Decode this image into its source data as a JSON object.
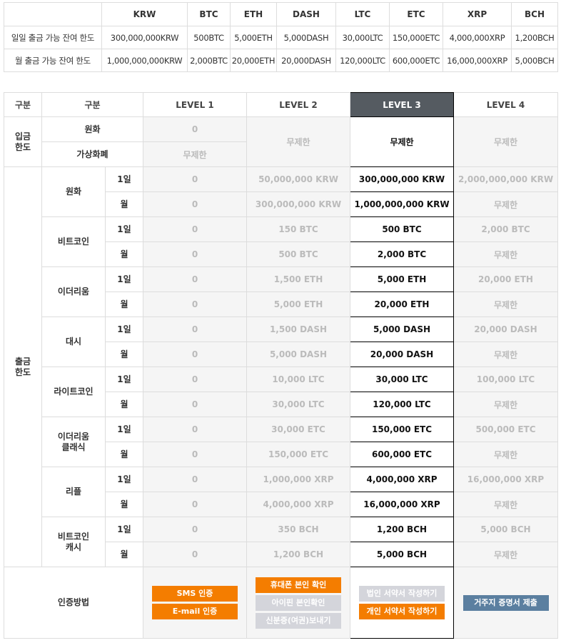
{
  "colors": {
    "accent": "#f47d00",
    "level3_header": "#555b61",
    "disabled_button": "#d4d5db",
    "residence_button": "#5b7fa0"
  },
  "summary": {
    "headers": [
      "",
      "KRW",
      "BTC",
      "ETH",
      "DASH",
      "LTC",
      "ETC",
      "XRP",
      "BCH"
    ],
    "rows": [
      {
        "label": "일일 출금 가능 잔여 한도",
        "values": [
          "300,000,000KRW",
          "500BTC",
          "5,000ETH",
          "5,000DASH",
          "30,000LTC",
          "150,000ETC",
          "4,000,000XRP",
          "1,200BCH"
        ]
      },
      {
        "label": "월 출금 가능 잔여 한도",
        "values": [
          "1,000,000,000KRW",
          "2,000BTC",
          "20,000ETH",
          "20,000DASH",
          "120,000LTC",
          "600,000ETC",
          "16,000,000XRP",
          "5,000BCH"
        ]
      }
    ]
  },
  "levels": {
    "header_col1": "구분",
    "header_col2": "구분",
    "levels": [
      "LEVEL 1",
      "LEVEL 2",
      "LEVEL 3",
      "LEVEL 4"
    ],
    "selected_level": "LEVEL 3",
    "deposit": {
      "label": "입금\n한도",
      "krw_label": "원화",
      "crypto_label": "가상화폐",
      "level1_krw": "0",
      "level1_crypto": "무제한",
      "level2": "무제한",
      "level3": "무제한",
      "level4": "무제한"
    },
    "withdraw_label": "출금\n한도",
    "coins": [
      {
        "name": "원화",
        "rows": [
          {
            "period": "1일",
            "values": [
              "0",
              "50,000,000 KRW",
              "300,000,000 KRW",
              "2,000,000,000 KRW"
            ]
          },
          {
            "period": "월",
            "values": [
              "0",
              "300,000,000 KRW",
              "1,000,000,000 KRW",
              "무제한"
            ]
          }
        ]
      },
      {
        "name": "비트코인",
        "rows": [
          {
            "period": "1일",
            "values": [
              "0",
              "150 BTC",
              "500 BTC",
              "2,000 BTC"
            ]
          },
          {
            "period": "월",
            "values": [
              "0",
              "500 BTC",
              "2,000 BTC",
              "무제한"
            ]
          }
        ]
      },
      {
        "name": "이더리움",
        "rows": [
          {
            "period": "1일",
            "values": [
              "0",
              "1,500 ETH",
              "5,000 ETH",
              "20,000 ETH"
            ]
          },
          {
            "period": "월",
            "values": [
              "0",
              "5,000 ETH",
              "20,000 ETH",
              "무제한"
            ]
          }
        ]
      },
      {
        "name": "대시",
        "rows": [
          {
            "period": "1일",
            "values": [
              "0",
              "1,500 DASH",
              "5,000 DASH",
              "20,000 DASH"
            ]
          },
          {
            "period": "월",
            "values": [
              "0",
              "5,000 DASH",
              "20,000 DASH",
              "무제한"
            ]
          }
        ]
      },
      {
        "name": "라이트코인",
        "rows": [
          {
            "period": "1일",
            "values": [
              "0",
              "10,000 LTC",
              "30,000 LTC",
              "100,000 LTC"
            ]
          },
          {
            "period": "월",
            "values": [
              "0",
              "30,000 LTC",
              "120,000 LTC",
              "무제한"
            ]
          }
        ]
      },
      {
        "name": "이더리움\n클래식",
        "rows": [
          {
            "period": "1일",
            "values": [
              "0",
              "30,000 ETC",
              "150,000 ETC",
              "500,000 ETC"
            ]
          },
          {
            "period": "월",
            "values": [
              "0",
              "150,000 ETC",
              "600,000 ETC",
              "무제한"
            ]
          }
        ]
      },
      {
        "name": "리플",
        "rows": [
          {
            "period": "1일",
            "values": [
              "0",
              "1,000,000 XRP",
              "4,000,000 XRP",
              "16,000,000 XRP"
            ]
          },
          {
            "period": "월",
            "values": [
              "0",
              "4,000,000 XRP",
              "16,000,000 XRP",
              "무제한"
            ]
          }
        ]
      },
      {
        "name": "비트코인\n캐시",
        "rows": [
          {
            "period": "1일",
            "values": [
              "0",
              "350 BCH",
              "1,200 BCH",
              "5,000 BCH"
            ]
          },
          {
            "period": "월",
            "values": [
              "0",
              "1,200 BCH",
              "5,000 BCH",
              "무제한"
            ]
          }
        ]
      }
    ],
    "auth": {
      "label": "인증방법",
      "level1": [
        {
          "label": "SMS 인증",
          "style": "orange"
        },
        {
          "label": "E-mail 인증",
          "style": "orange"
        }
      ],
      "level2": [
        {
          "label": "휴대폰 본인 확인",
          "style": "orange"
        },
        {
          "label": "아이핀 본인확인",
          "style": "gray"
        },
        {
          "label": "신분증(여권)보내기",
          "style": "gray"
        }
      ],
      "level3": [
        {
          "label": "법인 서약서 작성하기",
          "style": "gray"
        },
        {
          "label": "개인 서약서 작성하기",
          "style": "orange"
        }
      ],
      "level4": [
        {
          "label": "거주지 증명서 제출",
          "style": "blue"
        }
      ]
    }
  }
}
